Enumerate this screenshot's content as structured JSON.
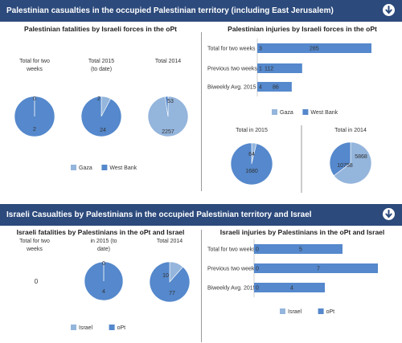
{
  "colors": {
    "header_bg": "#2c4a7c",
    "gaza": "#94b5dc",
    "west_bank": "#5588cc",
    "israel": "#94b5dc",
    "opt": "#5588cc",
    "divider": "#9a9a9a"
  },
  "icons": {
    "collapse": "circle-arrow-down-icon"
  },
  "section1": {
    "header": "Palestinian casualties in the occupied Palestinian territory (including East Jerusalem)",
    "left_title": "Palestinian fatalities by Israeli forces in the oPt",
    "right_title": "Palestinian injuries by Israeli forces in the oPt"
  },
  "section2": {
    "header": "Israeli Casualties by Palestinians in the occupied Palestinian territory and Israel",
    "left_title": "Israeli fatalities by Palestinians in the oPt and Israel",
    "right_title": "Israeli injuries by Palestinians in the oPt and Israel",
    "zero_text": "0"
  },
  "chart_data": [
    {
      "id": "pal_fatalities",
      "type": "pie",
      "legend": [
        "Gaza",
        "West Bank"
      ],
      "pies": [
        {
          "label_lines": [
            "Total for two",
            "weeks"
          ],
          "values": [
            0,
            2
          ]
        },
        {
          "label_lines": [
            "Total 2015",
            "(to date)"
          ],
          "values": [
            2,
            24
          ]
        },
        {
          "label_lines": [
            "Total 2014"
          ],
          "values": [
            2257,
            53
          ]
        }
      ]
    },
    {
      "id": "pal_injuries_bar",
      "type": "bar",
      "orientation": "horizontal",
      "stacked": true,
      "categories": [
        "Total for two weeks",
        "Previous two weeks",
        "Biweekly Avg. 2015"
      ],
      "series": [
        {
          "name": "Gaza",
          "values": [
            0,
            0,
            0
          ]
        },
        {
          "name": "West Bank",
          "values": [
            285,
            112,
            86
          ]
        }
      ],
      "bar_start_labels": [
        "3",
        "1",
        "4"
      ],
      "legend": [
        "Gaza",
        "West Bank"
      ]
    },
    {
      "id": "pal_injuries_pies",
      "type": "pie",
      "pies": [
        {
          "label_lines": [
            "Total in 2015"
          ],
          "values": [
            64,
            1680
          ]
        },
        {
          "label_lines": [
            "Total in 2014"
          ],
          "values": [
            10758,
            5868
          ]
        }
      ]
    },
    {
      "id": "isr_fatalities",
      "type": "pie",
      "legend": [
        "Israel",
        "oPt"
      ],
      "pies": [
        {
          "label_lines": [
            "Total for two",
            "weeks"
          ],
          "values": [
            0,
            0
          ]
        },
        {
          "label_lines": [
            "in 2015 (to",
            "date)"
          ],
          "values": [
            0,
            4
          ]
        },
        {
          "label_lines": [
            "Total 2014"
          ],
          "values": [
            10,
            77
          ]
        }
      ]
    },
    {
      "id": "isr_injuries_bar",
      "type": "bar",
      "orientation": "horizontal",
      "stacked": true,
      "categories": [
        "Total for two weeks",
        "Previous two weeks",
        "Biweekly Avg. 2015"
      ],
      "series": [
        {
          "name": "Israel",
          "values": [
            0,
            0,
            0
          ]
        },
        {
          "name": "oPt",
          "values": [
            5,
            7,
            4
          ]
        }
      ],
      "bar_start_labels": [
        "0",
        "0",
        "0"
      ],
      "legend": [
        "Israel",
        "oPt"
      ]
    }
  ]
}
